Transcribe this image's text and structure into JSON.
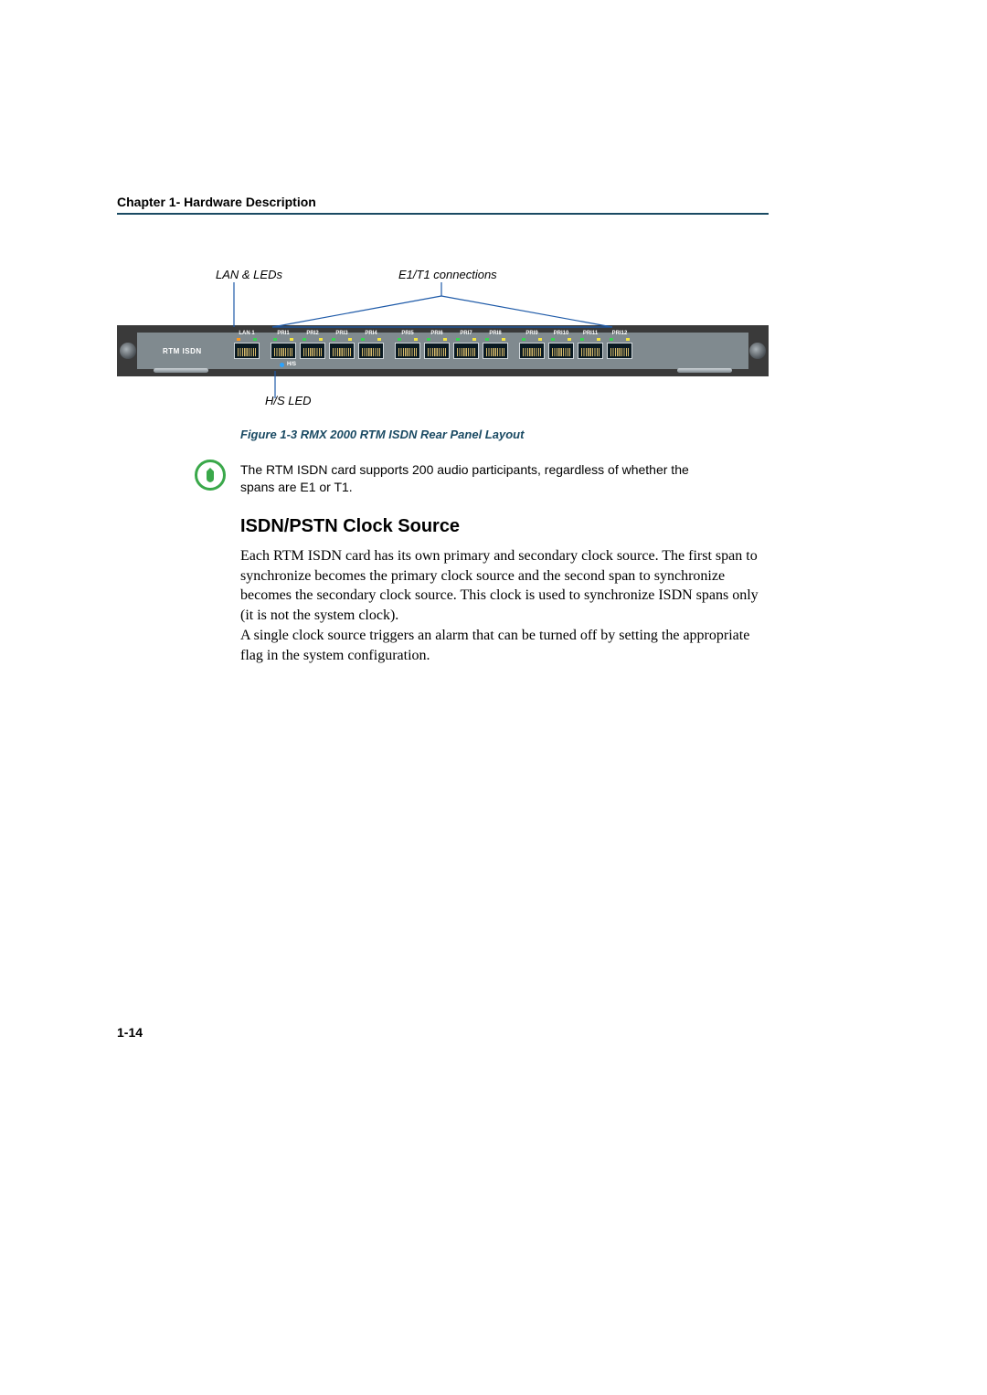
{
  "header": {
    "chapter": "Chapter 1- Hardware Description"
  },
  "diagram": {
    "label_lan_leds": "LAN & LEDs",
    "label_e1t1": "E1/T1 connections",
    "label_hs_led": "H/S LED",
    "caption": "Figure 1-3  RMX 2000 RTM ISDN Rear Panel Layout",
    "card_label": "RTM ISDN",
    "hs_label": "H/S",
    "lan_port": {
      "label": "LAN 1",
      "led_colors": [
        "#ff9a1f",
        "#39d353"
      ]
    },
    "pri_ports": [
      {
        "label": "PRI1"
      },
      {
        "label": "PRI2"
      },
      {
        "label": "PRI3"
      },
      {
        "label": "PRI4"
      },
      {
        "label": "PRI5"
      },
      {
        "label": "PRI6"
      },
      {
        "label": "PRI7"
      },
      {
        "label": "PRI8"
      },
      {
        "label": "PRI9"
      },
      {
        "label": "PRI10"
      },
      {
        "label": "PRI11"
      },
      {
        "label": "PRI12"
      }
    ],
    "pri_led_colors": [
      "#39d353",
      "#f5e642"
    ],
    "colors": {
      "panel_outer": "#3a3a3a",
      "panel_inner": "#808a8f",
      "callout_blue": "#1e5aa8",
      "caption_color": "#1a4a63",
      "note_icon_ring": "#3aa84a",
      "hs_led": "#2aa3ff"
    }
  },
  "note": {
    "text": "The RTM ISDN card supports 200 audio participants, regardless of whether the spans are E1 or T1."
  },
  "section": {
    "heading": "ISDN/PSTN Clock Source",
    "para1": "Each RTM ISDN card has its own primary and secondary clock source. The first span to synchronize becomes the primary clock source and the second span to synchronize becomes the secondary clock source. This clock is used to synchronize ISDN spans only (it is not the system clock).",
    "para2": "A single clock source triggers an alarm that can be turned off by setting the appropriate flag in the system configuration."
  },
  "footer": {
    "page": "1-14"
  }
}
